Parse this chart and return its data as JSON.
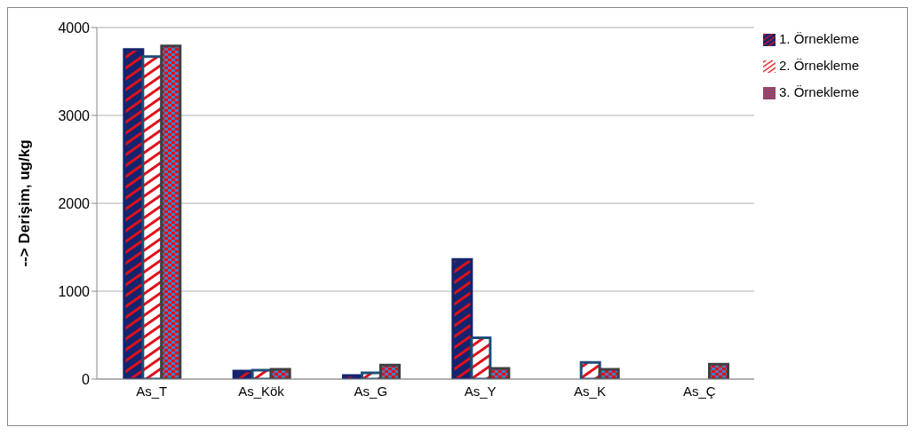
{
  "chart_data": {
    "type": "bar",
    "ylabel": "--> Derişim, ug/kg",
    "categories": [
      "As_T",
      "As_Kök",
      "As_G",
      "As_Y",
      "As_K",
      "As_Ç"
    ],
    "series": [
      {
        "name": "1. Örnekleme",
        "color": "#14246e",
        "values": [
          3750,
          90,
          40,
          1360,
          null,
          null
        ]
      },
      {
        "name": "2. Örnekleme",
        "color": "#1f4e79",
        "values": [
          3670,
          100,
          70,
          470,
          190,
          null
        ]
      },
      {
        "name": "3. Örnekleme",
        "color": "#404040",
        "values": [
          3790,
          110,
          160,
          120,
          110,
          170
        ]
      }
    ],
    "ylim": [
      0,
      4000
    ],
    "yticks": [
      0,
      1000,
      2000,
      3000,
      4000
    ],
    "grid": "y",
    "legend": "right"
  }
}
